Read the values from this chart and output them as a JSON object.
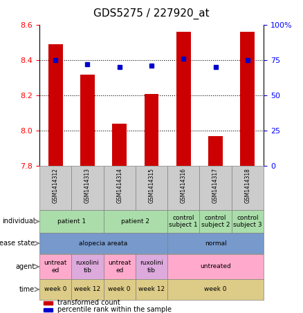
{
  "title": "GDS5275 / 227920_at",
  "samples": [
    "GSM1414312",
    "GSM1414313",
    "GSM1414314",
    "GSM1414315",
    "GSM1414316",
    "GSM1414317",
    "GSM1414318"
  ],
  "bar_values": [
    8.49,
    8.32,
    8.04,
    8.21,
    8.56,
    7.97,
    8.56
  ],
  "dot_values": [
    75,
    72,
    70,
    71,
    76,
    70,
    75
  ],
  "ylim_left": [
    7.8,
    8.6
  ],
  "ylim_right": [
    0,
    100
  ],
  "yticks_left": [
    7.8,
    8.0,
    8.2,
    8.4,
    8.6
  ],
  "yticks_right": [
    0,
    25,
    50,
    75,
    100
  ],
  "ytick_labels_right": [
    "0",
    "25",
    "50",
    "75",
    "100%"
  ],
  "bar_color": "#cc0000",
  "dot_color": "#0000cc",
  "row_labels": [
    "individual",
    "disease state",
    "agent",
    "time"
  ],
  "individual_cells": [
    {
      "text": "patient 1",
      "cols": [
        0,
        1
      ],
      "color": "#aaddaa"
    },
    {
      "text": "patient 2",
      "cols": [
        2,
        3
      ],
      "color": "#aaddaa"
    },
    {
      "text": "control\nsubject 1",
      "cols": [
        4
      ],
      "color": "#aaddaa"
    },
    {
      "text": "control\nsubject 2",
      "cols": [
        5
      ],
      "color": "#aaddaa"
    },
    {
      "text": "control\nsubject 3",
      "cols": [
        6
      ],
      "color": "#aaddaa"
    }
  ],
  "disease_cells": [
    {
      "text": "alopecia areata",
      "cols": [
        0,
        1,
        2,
        3
      ],
      "color": "#7799cc"
    },
    {
      "text": "normal",
      "cols": [
        4,
        5,
        6
      ],
      "color": "#7799cc"
    }
  ],
  "agent_cells": [
    {
      "text": "untreat\ned",
      "cols": [
        0
      ],
      "color": "#ffaacc"
    },
    {
      "text": "ruxolini\ntib",
      "cols": [
        1
      ],
      "color": "#ddaadd"
    },
    {
      "text": "untreat\ned",
      "cols": [
        2
      ],
      "color": "#ffaacc"
    },
    {
      "text": "ruxolini\ntib",
      "cols": [
        3
      ],
      "color": "#ddaadd"
    },
    {
      "text": "untreated",
      "cols": [
        4,
        5,
        6
      ],
      "color": "#ffaacc"
    }
  ],
  "time_cells": [
    {
      "text": "week 0",
      "cols": [
        0
      ],
      "color": "#ddcc88"
    },
    {
      "text": "week 12",
      "cols": [
        1
      ],
      "color": "#ddcc88"
    },
    {
      "text": "week 0",
      "cols": [
        2
      ],
      "color": "#ddcc88"
    },
    {
      "text": "week 12",
      "cols": [
        3
      ],
      "color": "#ddcc88"
    },
    {
      "text": "week 0",
      "cols": [
        4,
        5,
        6
      ],
      "color": "#ddcc88"
    }
  ],
  "legend_items": [
    {
      "color": "#cc0000",
      "label": "transformed count"
    },
    {
      "color": "#0000cc",
      "label": "percentile rank within the sample"
    }
  ]
}
